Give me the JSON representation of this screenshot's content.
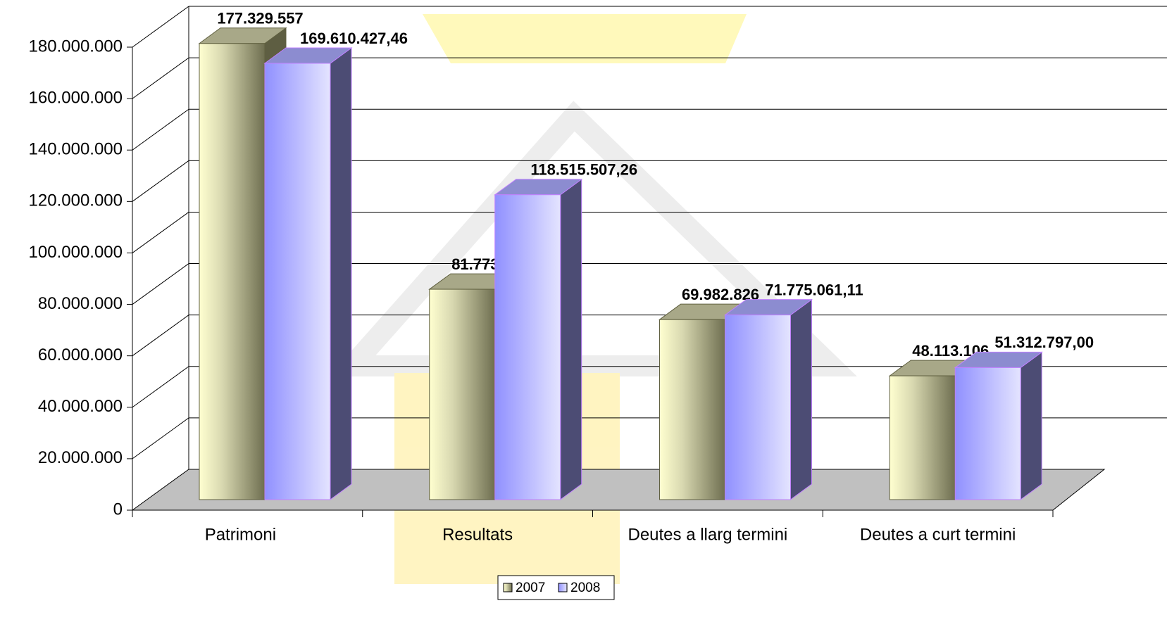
{
  "chart_data": {
    "type": "bar3d",
    "categories": [
      "Patrimoni",
      "Resultats",
      "Deutes a llarg termini",
      "Deutes a curt termini"
    ],
    "series": [
      {
        "name": "2007",
        "color": "#ffffcc",
        "values": [
          177329557,
          81773767,
          69982826,
          48113106
        ],
        "value_labels": [
          "177.329.557",
          "81.773.767",
          "69.982.826",
          "48.113.106"
        ]
      },
      {
        "name": "2008",
        "color": "#9999ff",
        "values": [
          169610427.46,
          118515507.26,
          71775061.11,
          51312797.0
        ],
        "value_labels": [
          "169.610.427,46",
          "118.515.507,26",
          "71.775.061,11",
          "51.312.797,00"
        ]
      }
    ],
    "ylim": [
      0,
      180000000
    ],
    "yticks": [
      0,
      {
        "value": 20000000,
        "label": "20.000.000"
      },
      {
        "value": 40000000,
        "label": "40.000.000"
      },
      {
        "value": 60000000,
        "label": "60.000.000"
      },
      {
        "value": 80000000,
        "label": "80.000.000"
      },
      {
        "value": 100000000,
        "label": "100.000.000"
      },
      {
        "value": 120000000,
        "label": "120.000.000"
      },
      {
        "value": 140000000,
        "label": "140.000.000"
      },
      {
        "value": 160000000,
        "label": "160.000.000"
      },
      {
        "value": 180000000,
        "label": "180.000.000"
      }
    ],
    "grid": true,
    "legend": "bottom"
  }
}
